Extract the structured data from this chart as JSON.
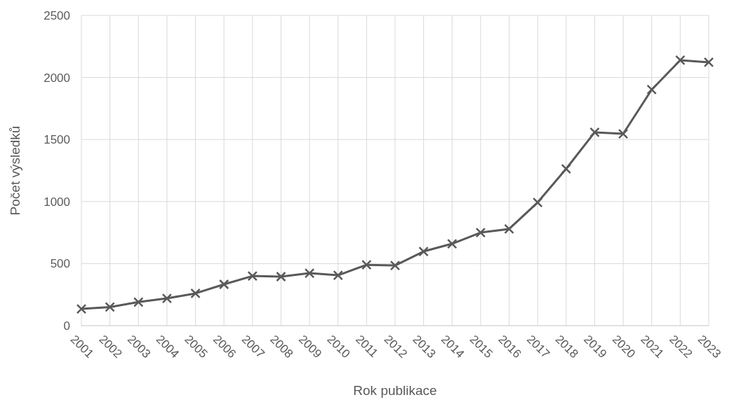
{
  "chart_data": {
    "type": "line",
    "xlabel": "Rok publikace",
    "ylabel": "Počet výsledků",
    "categories": [
      "2001",
      "2002",
      "2003",
      "2004",
      "2005",
      "2006",
      "2007",
      "2008",
      "2009",
      "2010",
      "2011",
      "2012",
      "2013",
      "2014",
      "2015",
      "2016",
      "2017",
      "2018",
      "2019",
      "2020",
      "2021",
      "2022",
      "2023"
    ],
    "series": [
      {
        "color": "#595959",
        "values": [
          135,
          150,
          190,
          220,
          260,
          333,
          400,
          395,
          423,
          406,
          490,
          485,
          598,
          660,
          750,
          779,
          993,
          1264,
          1558,
          1546,
          1902,
          2139,
          2122
        ]
      }
    ],
    "ylim": [
      0,
      2500
    ],
    "yticks": [
      0,
      500,
      1000,
      1500,
      2000,
      2500
    ],
    "grid": true,
    "marker": "cross",
    "line_style": "solid"
  }
}
